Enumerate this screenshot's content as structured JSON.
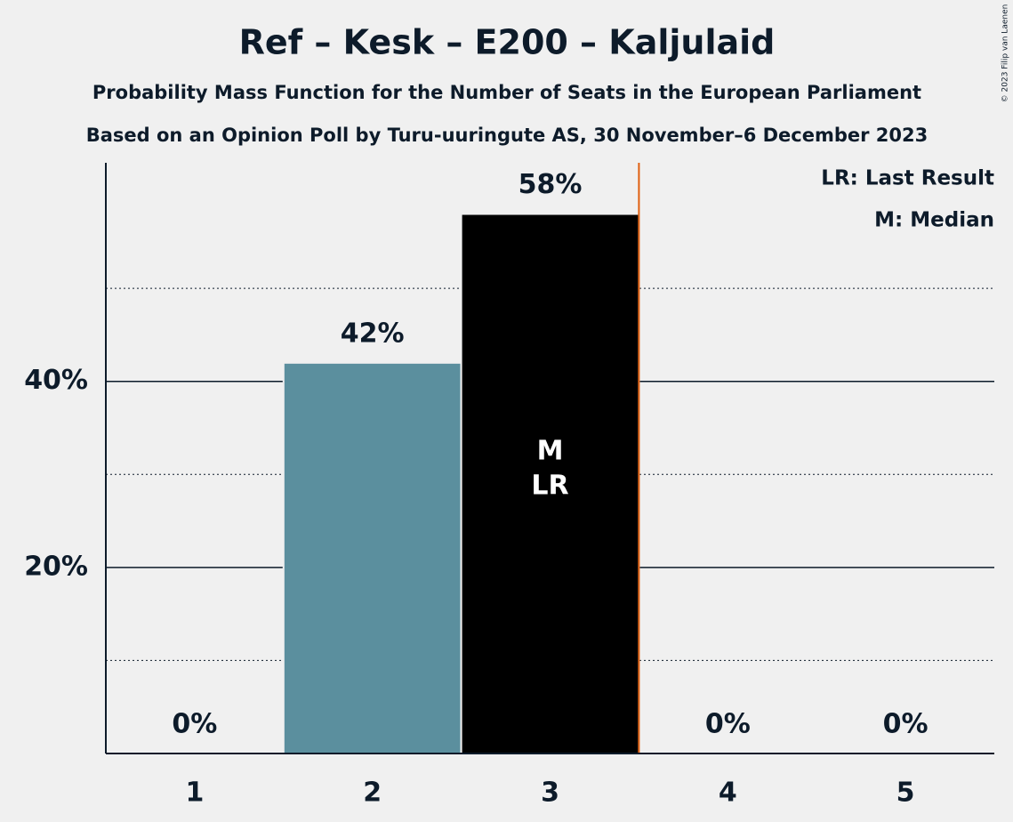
{
  "chart_data": {
    "type": "bar",
    "title": "Ref – Kesk – E200 – Kaljulaid",
    "subtitle": "Probability Mass Function for the Number of Seats in the European Parliament",
    "subtitle2": "Based on an Opinion Poll by Turu-uuringute AS, 30 November–6 December 2023",
    "copyright": "© 2023 Filip van Laenen",
    "legend_lines": [
      "LR: Last Result",
      "M: Median"
    ],
    "categories": [
      "1",
      "2",
      "3",
      "4",
      "5"
    ],
    "values": [
      0,
      42,
      58,
      0,
      0
    ],
    "value_labels": [
      "0%",
      "42%",
      "58%",
      "0%",
      "0%"
    ],
    "colors": [
      "#5b8f9e",
      "#5b8f9e",
      "#000000",
      "#5b8f9e",
      "#5b8f9e"
    ],
    "inner_labels": [
      null,
      null,
      [
        "M",
        "LR"
      ],
      null,
      null
    ],
    "ylim": [
      0,
      63.5
    ],
    "yticks": [
      {
        "value": 20,
        "label": "20%"
      },
      {
        "value": 40,
        "label": "40%"
      }
    ],
    "minor_yticks": [
      10,
      30,
      50
    ],
    "vline_x": 3.5,
    "vline_color": "#e06010",
    "grid": true
  }
}
